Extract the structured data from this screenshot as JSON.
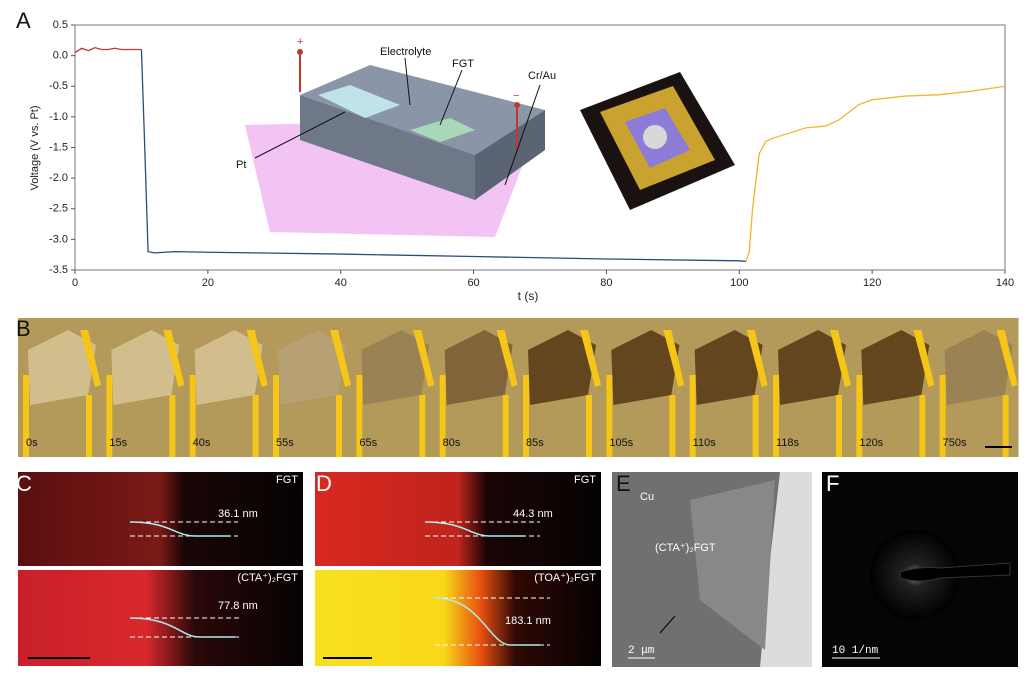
{
  "panel_letters": [
    "A",
    "B",
    "C",
    "D",
    "E",
    "F"
  ],
  "chart_data": {
    "type": "line",
    "x_label": "t (s)",
    "y_label": "Voltage (V vs. Pt)",
    "xlim": [
      0,
      140
    ],
    "xticks": [
      0,
      20,
      40,
      60,
      80,
      100,
      120,
      140
    ],
    "ylim": [
      -3.5,
      0.5
    ],
    "yticks": [
      0.5,
      {
        "value": 0,
        "label": "0.0"
      },
      -0.5,
      {
        "value": -1,
        "label": "-1.0"
      },
      -1.5,
      {
        "value": -2,
        "label": "-2.0"
      },
      -2.5,
      {
        "value": -3,
        "label": "-3.0"
      },
      -3.5
    ],
    "x": [
      0,
      1,
      2,
      3,
      4,
      5,
      6,
      7,
      8,
      9,
      10,
      10.5,
      11,
      12,
      15,
      20,
      40,
      60,
      80,
      100,
      101,
      101.5,
      102,
      103,
      104,
      105,
      108,
      110,
      113,
      115,
      118,
      120,
      125,
      130,
      135,
      140
    ],
    "series": [
      {
        "color": "#c8352b",
        "values": [
          0.05,
          0.12,
          0.08,
          0.13,
          0.1,
          0.1,
          0.12,
          0.1,
          0.1,
          0.1,
          0.1,
          null,
          null,
          null,
          null,
          null,
          null,
          null,
          null,
          null,
          null,
          null,
          null,
          null,
          null,
          null,
          null,
          null,
          null,
          null,
          null,
          null,
          null,
          null,
          null,
          null
        ]
      },
      {
        "color": "#2c4a7c",
        "values": [
          null,
          null,
          null,
          null,
          null,
          null,
          null,
          null,
          null,
          null,
          0.1,
          -1.5,
          -3.2,
          -3.22,
          -3.2,
          -3.21,
          -3.24,
          -3.28,
          -3.32,
          -3.35,
          -3.36,
          null,
          null,
          null,
          null,
          null,
          null,
          null,
          null,
          null,
          null,
          null,
          null,
          null,
          null,
          null
        ]
      },
      {
        "color": "#f2b52b",
        "values": [
          null,
          null,
          null,
          null,
          null,
          null,
          null,
          null,
          null,
          null,
          null,
          null,
          null,
          null,
          null,
          null,
          null,
          null,
          null,
          null,
          -3.36,
          -3.2,
          -2.5,
          -1.6,
          -1.4,
          -1.35,
          -1.25,
          -1.18,
          -1.15,
          -1.05,
          -0.8,
          -0.72,
          -0.66,
          -0.64,
          -0.58,
          -0.5
        ]
      }
    ],
    "annotations": [
      "Electrolyte",
      "FGT",
      "Cr/Au",
      "Pt",
      "+",
      "−"
    ]
  },
  "frames": {
    "labels": [
      "0s",
      "15s",
      "40s",
      "55s",
      "65s",
      "80s",
      "85s",
      "105s",
      "110s",
      "118s",
      "120s",
      "750s"
    ]
  },
  "panel_c": {
    "top": {
      "label": "FGT",
      "height": "36.1 nm"
    },
    "bottom": {
      "label": "(CTA⁺)₂FGT",
      "height": "77.8 nm"
    }
  },
  "panel_d": {
    "top": {
      "label": "FGT",
      "height": "44.3 nm"
    },
    "bottom": {
      "label": "(TOA⁺)₂FGT",
      "height": "183.1 nm"
    }
  },
  "panel_e": {
    "labels": [
      "Cu",
      "(CTA⁺)₂FGT"
    ],
    "scale_bar": "2 μm"
  },
  "panel_f": {
    "scale_bar": "10 1/nm"
  }
}
